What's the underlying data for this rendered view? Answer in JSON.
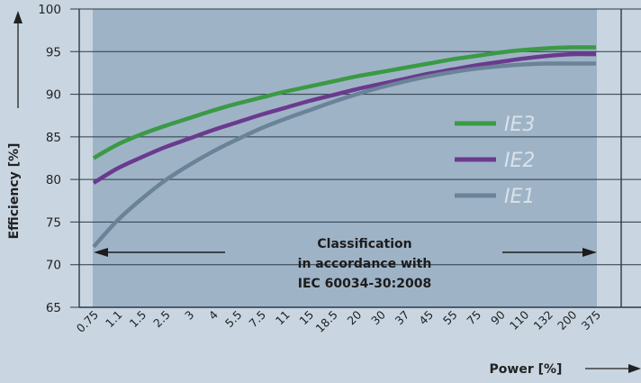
{
  "chart_data": {
    "type": "line",
    "ylabel": "Efficiency [%]",
    "xlabel": "Power [%]",
    "ylim": [
      65,
      100
    ],
    "yticks": [
      "65",
      "70",
      "75",
      "80",
      "85",
      "90",
      "95",
      "100"
    ],
    "categories": [
      "0.75",
      "1.1",
      "1.5",
      "2.5",
      "3",
      "4",
      "5.5",
      "7.5",
      "11",
      "15",
      "18.5",
      "20",
      "30",
      "37",
      "45",
      "55",
      "75",
      "90",
      "110",
      "132",
      "200",
      "375"
    ],
    "series": [
      {
        "name": "IE3",
        "color": "#3a9a45",
        "values": [
          82.5,
          84.1,
          85.3,
          86.3,
          87.2,
          88.1,
          88.9,
          89.6,
          90.3,
          90.9,
          91.5,
          92.1,
          92.6,
          93.1,
          93.6,
          94.1,
          94.5,
          94.9,
          95.2,
          95.4,
          95.5,
          95.5
        ]
      },
      {
        "name": "IE2",
        "color": "#6a3a8e",
        "values": [
          79.6,
          81.3,
          82.6,
          83.8,
          84.8,
          85.8,
          86.7,
          87.6,
          88.4,
          89.2,
          89.9,
          90.6,
          91.2,
          91.8,
          92.4,
          92.9,
          93.4,
          93.8,
          94.2,
          94.5,
          94.7,
          94.7
        ]
      },
      {
        "name": "IE1",
        "color": "#6a8398",
        "values": [
          72.1,
          75.2,
          77.7,
          79.9,
          81.7,
          83.3,
          84.7,
          86.0,
          87.1,
          88.1,
          89.1,
          90.0,
          90.8,
          91.5,
          92.1,
          92.6,
          93.0,
          93.3,
          93.5,
          93.6,
          93.6,
          93.6
        ]
      }
    ],
    "annotation": [
      "Classification",
      "in accordance with",
      "IEC 60034-30:2008"
    ],
    "grid": true,
    "legend": "right"
  }
}
